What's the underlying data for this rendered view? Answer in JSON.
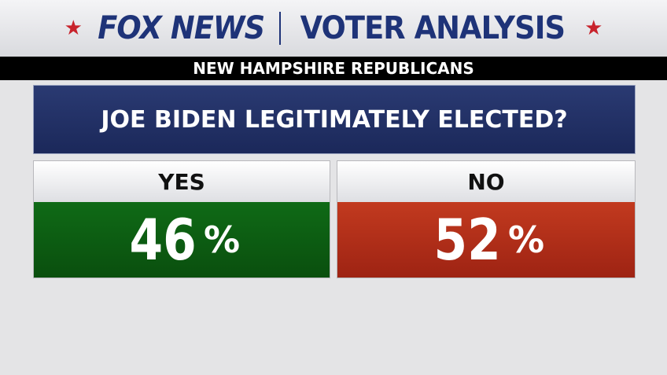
{
  "header": {
    "brand": "FOX NEWS",
    "title": "VOTER ANALYSIS",
    "subtitle": "NEW HAMPSHIRE REPUBLICANS"
  },
  "question": "JOE BIDEN LEGITIMATELY ELECTED?",
  "options": [
    {
      "label": "YES",
      "value": 46,
      "unit": "%"
    },
    {
      "label": "NO",
      "value": 52,
      "unit": "%"
    }
  ]
}
